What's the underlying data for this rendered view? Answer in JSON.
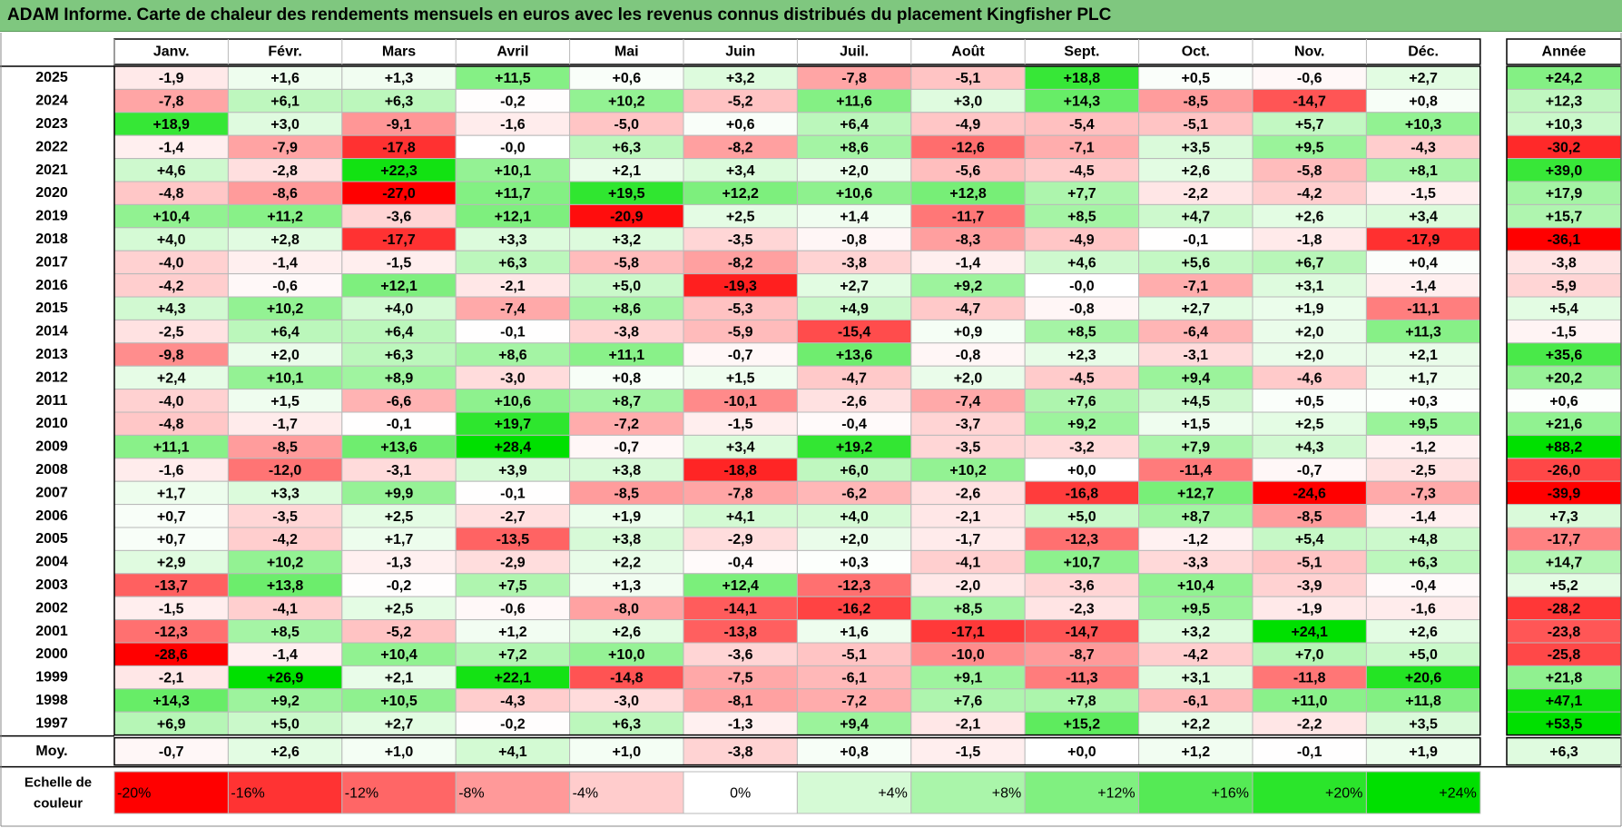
{
  "title": "ADAM Informe. Carte de chaleur des rendements mensuels en euros avec les revenus connus distribués du placement Kingfisher PLC",
  "chart_data": {
    "type": "heatmap",
    "title": "ADAM Informe. Carte de chaleur des rendements mensuels en euros avec les revenus connus distribués du placement Kingfisher PLC",
    "months": [
      "Janv.",
      "Févr.",
      "Mars",
      "Avril",
      "Mai",
      "Juin",
      "Juil.",
      "Août",
      "Sept.",
      "Oct.",
      "Nov.",
      "Déc."
    ],
    "year_header": "Année",
    "rows": [
      {
        "year": "2025",
        "values": [
          "-1,9",
          "+1,6",
          "+1,3",
          "+11,5",
          "+0,6",
          "+3,2",
          "-7,8",
          "-5,1",
          "+18,8",
          "+0,5",
          "-0,6",
          "+2,7"
        ],
        "annual": "+24,2"
      },
      {
        "year": "2024",
        "values": [
          "-7,8",
          "+6,1",
          "+6,3",
          "-0,2",
          "+10,2",
          "-5,2",
          "+11,6",
          "+3,0",
          "+14,3",
          "-8,5",
          "-14,7",
          "+0,8"
        ],
        "annual": "+12,3"
      },
      {
        "year": "2023",
        "values": [
          "+18,9",
          "+3,0",
          "-9,1",
          "-1,6",
          "-5,0",
          "+0,6",
          "+6,4",
          "-4,9",
          "-5,4",
          "-5,1",
          "+5,7",
          "+10,3"
        ],
        "annual": "+10,3"
      },
      {
        "year": "2022",
        "values": [
          "-1,4",
          "-7,9",
          "-17,8",
          "-0,0",
          "+6,3",
          "-8,2",
          "+8,6",
          "-12,6",
          "-7,1",
          "+3,5",
          "+9,5",
          "-4,3"
        ],
        "annual": "-30,2"
      },
      {
        "year": "2021",
        "values": [
          "+4,6",
          "-2,8",
          "+22,3",
          "+10,1",
          "+2,1",
          "+3,4",
          "+2,0",
          "-5,6",
          "-4,5",
          "+2,6",
          "-5,8",
          "+8,1"
        ],
        "annual": "+39,0"
      },
      {
        "year": "2020",
        "values": [
          "-4,8",
          "-8,6",
          "-27,0",
          "+11,7",
          "+19,5",
          "+12,2",
          "+10,6",
          "+12,8",
          "+7,7",
          "-2,2",
          "-4,2",
          "-1,5"
        ],
        "annual": "+17,9"
      },
      {
        "year": "2019",
        "values": [
          "+10,4",
          "+11,2",
          "-3,6",
          "+12,1",
          "-20,9",
          "+2,5",
          "+1,4",
          "-11,7",
          "+8,5",
          "+4,7",
          "+2,6",
          "+3,4"
        ],
        "annual": "+15,7"
      },
      {
        "year": "2018",
        "values": [
          "+4,0",
          "+2,8",
          "-17,7",
          "+3,3",
          "+3,2",
          "-3,5",
          "-0,8",
          "-8,3",
          "-4,9",
          "-0,1",
          "-1,8",
          "-17,9"
        ],
        "annual": "-36,1"
      },
      {
        "year": "2017",
        "values": [
          "-4,0",
          "-1,4",
          "-1,5",
          "+6,3",
          "-5,8",
          "-8,2",
          "-3,8",
          "-1,4",
          "+4,6",
          "+5,6",
          "+6,7",
          "+0,4"
        ],
        "annual": "-3,8"
      },
      {
        "year": "2016",
        "values": [
          "-4,2",
          "-0,6",
          "+12,1",
          "-2,1",
          "+5,0",
          "-19,3",
          "+2,7",
          "+9,2",
          "-0,0",
          "-7,1",
          "+3,1",
          "-1,4"
        ],
        "annual": "-5,9"
      },
      {
        "year": "2015",
        "values": [
          "+4,3",
          "+10,2",
          "+4,0",
          "-7,4",
          "+8,6",
          "-5,3",
          "+4,9",
          "-4,7",
          "-0,8",
          "+2,7",
          "+1,9",
          "-11,1"
        ],
        "annual": "+5,4"
      },
      {
        "year": "2014",
        "values": [
          "-2,5",
          "+6,4",
          "+6,4",
          "-0,1",
          "-3,8",
          "-5,9",
          "-15,4",
          "+0,9",
          "+8,5",
          "-6,4",
          "+2,0",
          "+11,3"
        ],
        "annual": "-1,5"
      },
      {
        "year": "2013",
        "values": [
          "-9,8",
          "+2,0",
          "+6,3",
          "+8,6",
          "+11,1",
          "-0,7",
          "+13,6",
          "-0,8",
          "+2,3",
          "-3,1",
          "+2,0",
          "+2,1"
        ],
        "annual": "+35,6"
      },
      {
        "year": "2012",
        "values": [
          "+2,4",
          "+10,1",
          "+8,9",
          "-3,0",
          "+0,8",
          "+1,5",
          "-4,7",
          "+2,0",
          "-4,5",
          "+9,4",
          "-4,6",
          "+1,7"
        ],
        "annual": "+20,2"
      },
      {
        "year": "2011",
        "values": [
          "-4,0",
          "+1,5",
          "-6,6",
          "+10,6",
          "+8,7",
          "-10,1",
          "-2,6",
          "-7,4",
          "+7,6",
          "+4,5",
          "+0,5",
          "+0,3"
        ],
        "annual": "+0,6"
      },
      {
        "year": "2010",
        "values": [
          "-4,8",
          "-1,7",
          "-0,1",
          "+19,7",
          "-7,2",
          "-1,5",
          "-0,4",
          "-3,7",
          "+9,2",
          "+1,5",
          "+2,5",
          "+9,5"
        ],
        "annual": "+21,6"
      },
      {
        "year": "2009",
        "values": [
          "+11,1",
          "-8,5",
          "+13,6",
          "+28,4",
          "-0,7",
          "+3,4",
          "+19,2",
          "-3,5",
          "-3,2",
          "+7,9",
          "+4,3",
          "-1,2"
        ],
        "annual": "+88,2"
      },
      {
        "year": "2008",
        "values": [
          "-1,6",
          "-12,0",
          "-3,1",
          "+3,9",
          "+3,8",
          "-18,8",
          "+6,0",
          "+10,2",
          "+0,0",
          "-11,4",
          "-0,7",
          "-2,5"
        ],
        "annual": "-26,0"
      },
      {
        "year": "2007",
        "values": [
          "+1,7",
          "+3,3",
          "+9,9",
          "-0,1",
          "-8,5",
          "-7,8",
          "-6,2",
          "-2,6",
          "-16,8",
          "+12,7",
          "-24,6",
          "-7,3"
        ],
        "annual": "-39,9"
      },
      {
        "year": "2006",
        "values": [
          "+0,7",
          "-3,5",
          "+2,5",
          "-2,7",
          "+1,9",
          "+4,1",
          "+4,0",
          "-2,1",
          "+5,0",
          "+8,7",
          "-8,5",
          "-1,4"
        ],
        "annual": "+7,3"
      },
      {
        "year": "2005",
        "values": [
          "+0,7",
          "-4,2",
          "+1,7",
          "-13,5",
          "+3,8",
          "-2,9",
          "+2,0",
          "-1,7",
          "-12,3",
          "-1,2",
          "+5,4",
          "+4,8"
        ],
        "annual": "-17,7"
      },
      {
        "year": "2004",
        "values": [
          "+2,9",
          "+10,2",
          "-1,3",
          "-2,9",
          "+2,2",
          "-0,4",
          "+0,3",
          "-4,1",
          "+10,7",
          "-3,3",
          "-5,1",
          "+6,3"
        ],
        "annual": "+14,7"
      },
      {
        "year": "2003",
        "values": [
          "-13,7",
          "+13,8",
          "-0,2",
          "+7,5",
          "+1,3",
          "+12,4",
          "-12,3",
          "-2,0",
          "-3,6",
          "+10,4",
          "-3,9",
          "-0,4"
        ],
        "annual": "+5,2"
      },
      {
        "year": "2002",
        "values": [
          "-1,5",
          "-4,1",
          "+2,5",
          "-0,6",
          "-8,0",
          "-14,1",
          "-16,2",
          "+8,5",
          "-2,3",
          "+9,5",
          "-1,9",
          "-1,6"
        ],
        "annual": "-28,2"
      },
      {
        "year": "2001",
        "values": [
          "-12,3",
          "+8,5",
          "-5,2",
          "+1,2",
          "+2,6",
          "-13,8",
          "+1,6",
          "-17,1",
          "-14,7",
          "+3,2",
          "+24,1",
          "+2,6"
        ],
        "annual": "-23,8"
      },
      {
        "year": "2000",
        "values": [
          "-28,6",
          "-1,4",
          "+10,4",
          "+7,2",
          "+10,0",
          "-3,6",
          "-5,1",
          "-10,0",
          "-8,7",
          "-4,2",
          "+7,0",
          "+5,0"
        ],
        "annual": "-25,8"
      },
      {
        "year": "1999",
        "values": [
          "-2,1",
          "+26,9",
          "+2,1",
          "+22,1",
          "-14,8",
          "-7,5",
          "-6,1",
          "+9,1",
          "-11,3",
          "+3,1",
          "-11,8",
          "+20,6"
        ],
        "annual": "+21,8"
      },
      {
        "year": "1998",
        "values": [
          "+14,3",
          "+9,2",
          "+10,5",
          "-4,3",
          "-3,0",
          "-8,1",
          "-7,2",
          "+7,6",
          "+7,8",
          "-6,1",
          "+11,0",
          "+11,8"
        ],
        "annual": "+47,1"
      },
      {
        "year": "1997",
        "values": [
          "+6,9",
          "+5,0",
          "+2,7",
          "-0,2",
          "+6,3",
          "-1,3",
          "+9,4",
          "-2,1",
          "+15,2",
          "+2,2",
          "-2,2",
          "+3,5"
        ],
        "annual": "+53,5"
      }
    ],
    "average": {
      "label": "Moy.",
      "values": [
        "-0,7",
        "+2,6",
        "+1,0",
        "+4,1",
        "+1,0",
        "-3,8",
        "+0,8",
        "-1,5",
        "+0,0",
        "+1,2",
        "-0,1",
        "+1,9"
      ],
      "annual": "+6,3"
    },
    "scale": {
      "label_line1": "Echelle de",
      "label_line2": "couleur",
      "items": [
        "-20%",
        "-16%",
        "-12%",
        "-8%",
        "-4%",
        "0%",
        "+4%",
        "+8%",
        "+12%",
        "+16%",
        "+20%",
        "+24%"
      ],
      "values": [
        -20,
        -16,
        -12,
        -8,
        -4,
        0,
        4,
        8,
        12,
        16,
        20,
        24
      ]
    },
    "colors": {
      "negative": "#ff0000",
      "neutral": "#ffffff",
      "positive": "#00e000",
      "title_background": "#7fc77f",
      "grid": "#b9b9b9",
      "border": "#000000"
    }
  }
}
